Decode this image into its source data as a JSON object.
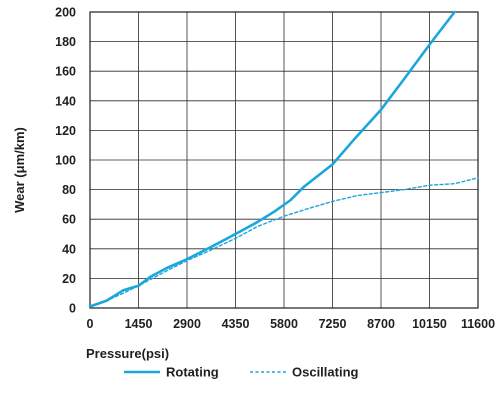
{
  "chart_data": {
    "type": "line",
    "title": "",
    "xlabel": "Pressure(psi)",
    "ylabel": "Wear (μm/km)",
    "xlim": [
      0,
      11600
    ],
    "ylim": [
      0,
      200
    ],
    "x_ticks": [
      0,
      1450,
      2900,
      4350,
      5800,
      7250,
      8700,
      10150,
      11600
    ],
    "y_ticks": [
      0,
      20,
      40,
      60,
      80,
      100,
      120,
      140,
      160,
      180,
      200
    ],
    "grid": true,
    "legend_position": "bottom",
    "series": [
      {
        "name": "Rotating",
        "style": "solid",
        "color": "#1aa7dc",
        "points": [
          [
            0,
            1
          ],
          [
            500,
            5
          ],
          [
            1000,
            12
          ],
          [
            1450,
            15
          ],
          [
            1800,
            21
          ],
          [
            2300,
            27
          ],
          [
            2900,
            33
          ],
          [
            3600,
            41
          ],
          [
            4350,
            50
          ],
          [
            5000,
            58
          ],
          [
            5500,
            65
          ],
          [
            6000,
            73
          ],
          [
            6400,
            82
          ],
          [
            7250,
            97
          ],
          [
            7900,
            114
          ],
          [
            8700,
            134
          ],
          [
            9400,
            155
          ],
          [
            10150,
            178
          ],
          [
            10900,
            200
          ]
        ]
      },
      {
        "name": "Oscillating",
        "style": "dashed",
        "color": "#1aa7dc",
        "points": [
          [
            0,
            1
          ],
          [
            500,
            5
          ],
          [
            1000,
            10
          ],
          [
            1450,
            15
          ],
          [
            2200,
            24
          ],
          [
            2900,
            32
          ],
          [
            3600,
            39
          ],
          [
            4350,
            47
          ],
          [
            5000,
            55
          ],
          [
            5800,
            62
          ],
          [
            6500,
            67
          ],
          [
            7250,
            72
          ],
          [
            8000,
            76
          ],
          [
            8700,
            78
          ],
          [
            9400,
            80
          ],
          [
            10150,
            83
          ],
          [
            10900,
            84
          ],
          [
            11600,
            88
          ]
        ]
      }
    ]
  }
}
